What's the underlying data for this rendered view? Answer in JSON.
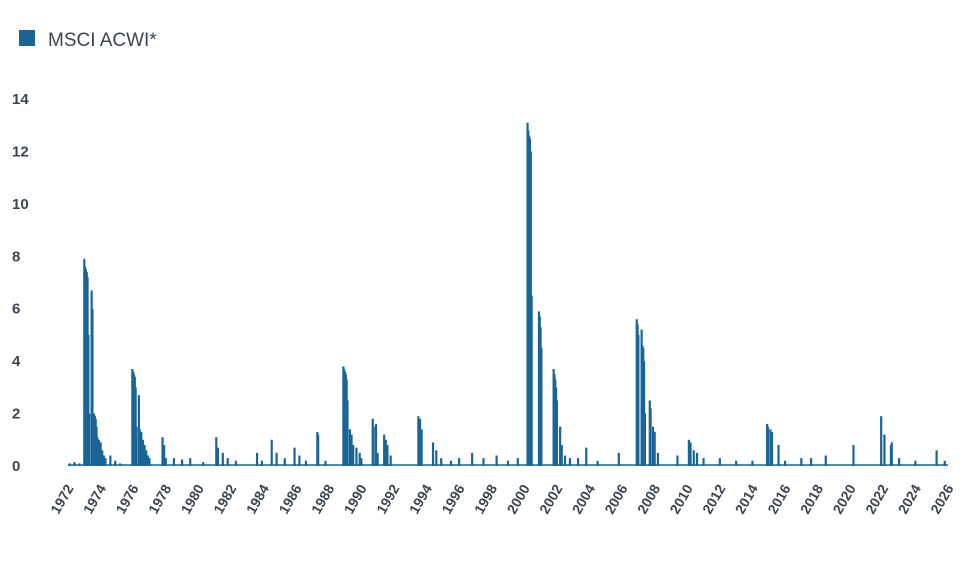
{
  "chart_data": {
    "type": "bar",
    "title": "",
    "xlabel": "",
    "ylabel": "",
    "ylim": [
      0,
      14
    ],
    "yticks": [
      0,
      2,
      4,
      6,
      8,
      10,
      12,
      14
    ],
    "xlim": [
      1972,
      2026
    ],
    "xticks": [
      "1972",
      "1974",
      "1976",
      "1978",
      "1980",
      "1982",
      "1984",
      "1986",
      "1988",
      "1990",
      "1992",
      "1994",
      "1996",
      "1998",
      "2000",
      "2002",
      "2004",
      "2006",
      "2008",
      "2010",
      "2012",
      "2014",
      "2016",
      "2018",
      "2020",
      "2022",
      "2024",
      "2026"
    ],
    "grid": false,
    "legend_position": "top-left",
    "color": "#1a6496",
    "series": [
      {
        "name": "MSCI ACWI*",
        "points": [
          [
            1972.1,
            0.1
          ],
          [
            1972.4,
            0.15
          ],
          [
            1972.7,
            0.1
          ],
          [
            1973.0,
            7.9
          ],
          [
            1973.05,
            7.6
          ],
          [
            1973.1,
            7.5
          ],
          [
            1973.15,
            7.4
          ],
          [
            1973.2,
            7.2
          ],
          [
            1973.25,
            5.0
          ],
          [
            1973.3,
            2.0
          ],
          [
            1973.45,
            6.7
          ],
          [
            1973.5,
            6.0
          ],
          [
            1973.55,
            2.0
          ],
          [
            1973.6,
            2.0
          ],
          [
            1973.65,
            1.9
          ],
          [
            1973.7,
            1.8
          ],
          [
            1973.75,
            1.5
          ],
          [
            1973.8,
            1.1
          ],
          [
            1973.85,
            1.0
          ],
          [
            1973.9,
            1.0
          ],
          [
            1974.0,
            0.9
          ],
          [
            1974.1,
            0.6
          ],
          [
            1974.2,
            0.4
          ],
          [
            1974.3,
            0.3
          ],
          [
            1974.6,
            0.4
          ],
          [
            1974.9,
            0.2
          ],
          [
            1975.2,
            0.1
          ],
          [
            1975.95,
            3.7
          ],
          [
            1976.0,
            3.6
          ],
          [
            1976.05,
            3.5
          ],
          [
            1976.1,
            3.4
          ],
          [
            1976.15,
            3.0
          ],
          [
            1976.2,
            1.5
          ],
          [
            1976.35,
            2.7
          ],
          [
            1976.4,
            1.4
          ],
          [
            1976.5,
            1.3
          ],
          [
            1976.6,
            1.0
          ],
          [
            1976.7,
            0.8
          ],
          [
            1976.8,
            0.6
          ],
          [
            1976.9,
            0.4
          ],
          [
            1977.0,
            0.3
          ],
          [
            1977.8,
            1.1
          ],
          [
            1977.9,
            0.8
          ],
          [
            1978.0,
            0.3
          ],
          [
            1978.5,
            0.3
          ],
          [
            1979.0,
            0.25
          ],
          [
            1979.5,
            0.3
          ],
          [
            1980.3,
            0.15
          ],
          [
            1981.1,
            1.1
          ],
          [
            1981.2,
            0.7
          ],
          [
            1981.5,
            0.5
          ],
          [
            1981.8,
            0.3
          ],
          [
            1982.3,
            0.2
          ],
          [
            1983.6,
            0.5
          ],
          [
            1983.9,
            0.2
          ],
          [
            1984.5,
            1.0
          ],
          [
            1984.8,
            0.5
          ],
          [
            1985.3,
            0.3
          ],
          [
            1985.9,
            0.7
          ],
          [
            1986.2,
            0.4
          ],
          [
            1986.6,
            0.2
          ],
          [
            1987.3,
            1.3
          ],
          [
            1987.35,
            1.2
          ],
          [
            1987.8,
            0.2
          ],
          [
            1988.9,
            3.8
          ],
          [
            1988.95,
            3.7
          ],
          [
            1989.0,
            3.6
          ],
          [
            1989.05,
            3.5
          ],
          [
            1989.1,
            3.3
          ],
          [
            1989.15,
            2.5
          ],
          [
            1989.3,
            1.4
          ],
          [
            1989.4,
            1.2
          ],
          [
            1989.5,
            0.8
          ],
          [
            1989.7,
            0.7
          ],
          [
            1989.9,
            0.5
          ],
          [
            1990.0,
            0.3
          ],
          [
            1990.7,
            1.8
          ],
          [
            1990.75,
            1.5
          ],
          [
            1990.9,
            1.6
          ],
          [
            1991.0,
            0.5
          ],
          [
            1991.4,
            1.2
          ],
          [
            1991.5,
            1.0
          ],
          [
            1991.6,
            0.8
          ],
          [
            1991.8,
            0.4
          ],
          [
            1993.5,
            1.9
          ],
          [
            1993.6,
            1.8
          ],
          [
            1993.7,
            1.4
          ],
          [
            1994.4,
            0.9
          ],
          [
            1994.6,
            0.6
          ],
          [
            1994.9,
            0.3
          ],
          [
            1995.5,
            0.2
          ],
          [
            1996.0,
            0.3
          ],
          [
            1996.8,
            0.5
          ],
          [
            1997.5,
            0.3
          ],
          [
            1998.3,
            0.4
          ],
          [
            1999.0,
            0.2
          ],
          [
            1999.6,
            0.3
          ],
          [
            2000.2,
            13.1
          ],
          [
            2000.25,
            12.8
          ],
          [
            2000.3,
            12.6
          ],
          [
            2000.35,
            12.5
          ],
          [
            2000.4,
            12.0
          ],
          [
            2000.45,
            6.5
          ],
          [
            2000.9,
            5.9
          ],
          [
            2000.95,
            5.7
          ],
          [
            2001.0,
            5.3
          ],
          [
            2001.05,
            4.5
          ],
          [
            2001.8,
            3.7
          ],
          [
            2001.85,
            3.5
          ],
          [
            2001.9,
            3.3
          ],
          [
            2001.95,
            3.0
          ],
          [
            2002.0,
            2.5
          ],
          [
            2002.2,
            1.5
          ],
          [
            2002.3,
            0.8
          ],
          [
            2002.5,
            0.4
          ],
          [
            2002.8,
            0.3
          ],
          [
            2003.3,
            0.3
          ],
          [
            2003.8,
            0.7
          ],
          [
            2004.5,
            0.2
          ],
          [
            2005.8,
            0.5
          ],
          [
            2006.9,
            5.6
          ],
          [
            2006.95,
            5.4
          ],
          [
            2007.0,
            5.0
          ],
          [
            2007.2,
            5.2
          ],
          [
            2007.25,
            4.6
          ],
          [
            2007.3,
            4.5
          ],
          [
            2007.35,
            4.0
          ],
          [
            2007.4,
            2.0
          ],
          [
            2007.7,
            2.5
          ],
          [
            2007.75,
            2.2
          ],
          [
            2007.9,
            1.5
          ],
          [
            2008.0,
            1.3
          ],
          [
            2008.2,
            0.5
          ],
          [
            2009.4,
            0.4
          ],
          [
            2010.1,
            1.0
          ],
          [
            2010.2,
            0.9
          ],
          [
            2010.4,
            0.6
          ],
          [
            2010.6,
            0.5
          ],
          [
            2011.0,
            0.3
          ],
          [
            2012.0,
            0.3
          ],
          [
            2013.0,
            0.2
          ],
          [
            2014.0,
            0.2
          ],
          [
            2014.9,
            1.6
          ],
          [
            2014.95,
            1.5
          ],
          [
            2015.1,
            1.4
          ],
          [
            2015.2,
            1.3
          ],
          [
            2015.6,
            0.8
          ],
          [
            2016.0,
            0.2
          ],
          [
            2017.0,
            0.3
          ],
          [
            2017.6,
            0.3
          ],
          [
            2018.5,
            0.4
          ],
          [
            2020.2,
            0.8
          ],
          [
            2021.9,
            1.9
          ],
          [
            2022.1,
            1.2
          ],
          [
            2022.5,
            0.8
          ],
          [
            2022.55,
            0.9
          ],
          [
            2023.0,
            0.3
          ],
          [
            2024.0,
            0.2
          ],
          [
            2025.3,
            0.6
          ],
          [
            2025.8,
            0.2
          ]
        ]
      }
    ]
  }
}
